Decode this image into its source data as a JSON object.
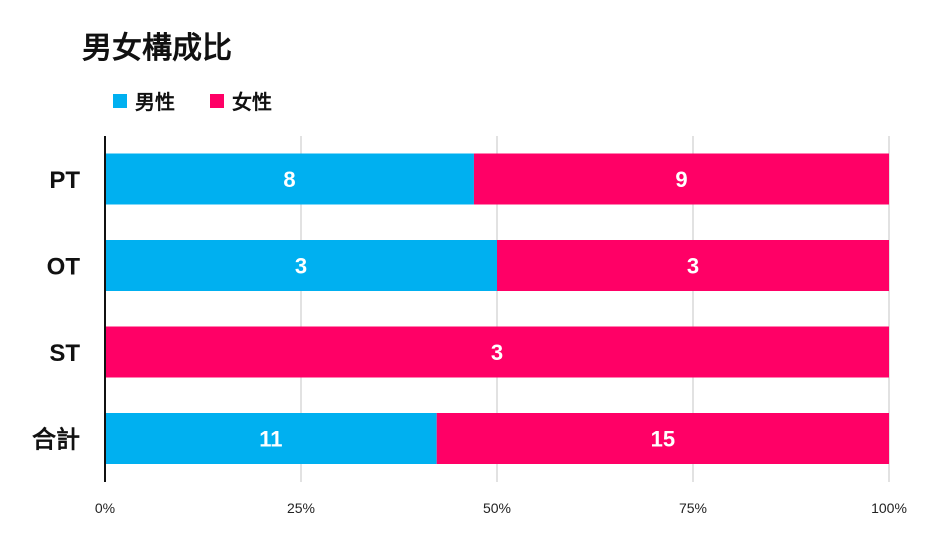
{
  "chart_data": {
    "type": "bar",
    "orientation": "horizontal",
    "stacking": "percent",
    "title": "男女構成比",
    "categories": [
      "PT",
      "OT",
      "ST",
      "合計"
    ],
    "series": [
      {
        "name": "男性",
        "color": "#00B0F0",
        "values": [
          8,
          3,
          0,
          11
        ]
      },
      {
        "name": "女性",
        "color": "#FF0066",
        "values": [
          9,
          3,
          3,
          15
        ]
      }
    ],
    "xaxis": {
      "ticks": [
        "0%",
        "25%",
        "50%",
        "75%",
        "100%"
      ],
      "range": [
        0,
        100
      ]
    },
    "grid": true,
    "legend": "top-left"
  }
}
